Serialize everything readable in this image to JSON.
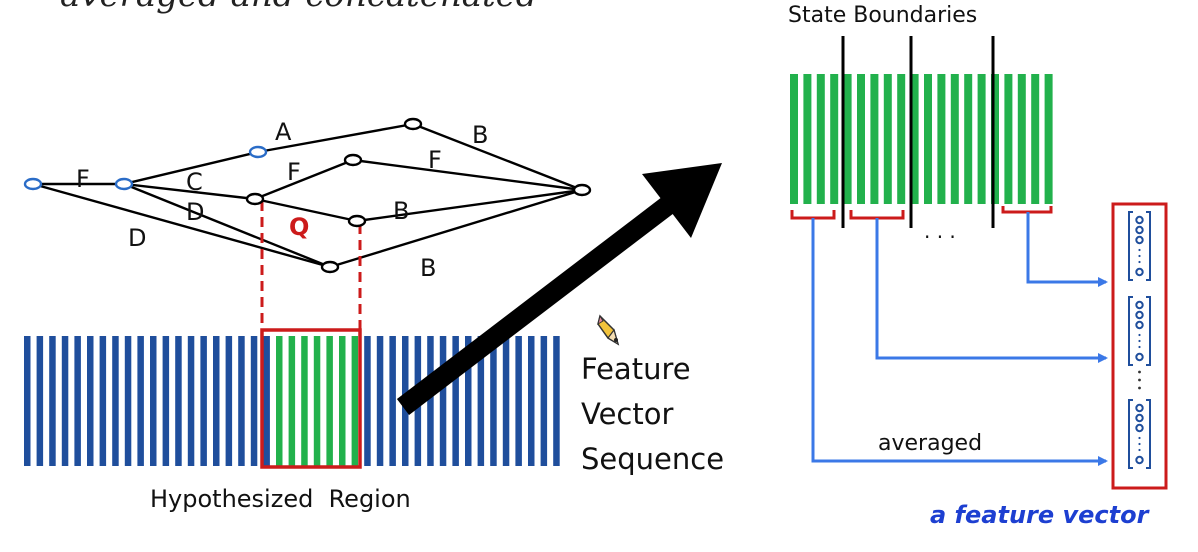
{
  "slide": {
    "title_fragment": "averaged and concatenated"
  },
  "lattice": {
    "edge_labels": {
      "a": "A",
      "b_top": "B",
      "f_left": "F",
      "c": "C",
      "f_mid": "F",
      "f_right": "F",
      "d_inner": "D",
      "d_outer": "D",
      "b_mid": "B",
      "b_bottom": "B"
    },
    "highlight_label": "Q"
  },
  "sequence": {
    "caption_lines": [
      "Feature",
      "Vector",
      "Sequence"
    ],
    "region_label": "Hypothesized  Region"
  },
  "states": {
    "title": "State Boundaries",
    "ellipsis": ". . .",
    "averaged_label": "averaged"
  },
  "output": {
    "caption": "a feature vector"
  },
  "colors": {
    "frame_blue": "#1f4e9c",
    "frame_green": "#22b14c",
    "highlight_red": "#cc1b1b",
    "arrow_blue": "#3b78e7",
    "caption_blue": "#1d3fd1",
    "node_blue": "#2a6cc7"
  },
  "icons": {
    "pencil": "pencil-cursor-icon"
  }
}
